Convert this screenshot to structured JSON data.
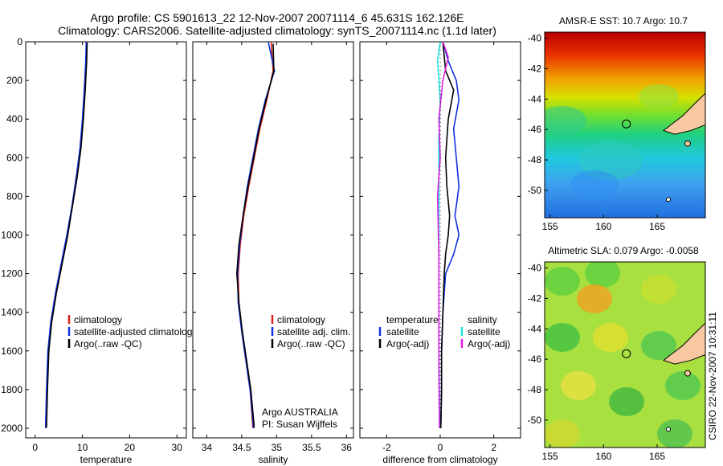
{
  "title": {
    "line1": "Argo profile: CS 5901613_22 12-Nov-2007 20071114_6 45.631S 162.126E",
    "line2": "Climatology: CARS2006. Satellite-adjusted climatology: synTS_20071114.nc (1.1d later)"
  },
  "side_label": "CSIRO 22-Nov-2007 10:31:11",
  "colors": {
    "climatology": "#e0201a",
    "satellite": "#1030e0",
    "argo": "#000000",
    "sat_sal": "#20e0e0",
    "argo_sal": "#e020e0"
  },
  "chart_data": [
    {
      "type": "line",
      "id": "temperature",
      "xlabel": "temperature",
      "xlim": [
        -2,
        32
      ],
      "ylim": [
        2050,
        0
      ],
      "xticks": [
        "0",
        "10",
        "20",
        "30"
      ],
      "xtick_values": [
        0,
        10,
        20,
        30
      ],
      "yticks": [
        "0",
        "200",
        "400",
        "600",
        "800",
        "1000",
        "1200",
        "1400",
        "1600",
        "1800",
        "2000"
      ],
      "ytick_values": [
        0,
        200,
        400,
        600,
        800,
        1000,
        1200,
        1400,
        1600,
        1800,
        2000
      ],
      "legend": [
        "climatology",
        "satellite-adjusted climatology",
        "Argo(..raw -QC)"
      ],
      "series": [
        {
          "name": "climatology",
          "color": "#e0201a",
          "x": [
            10.9,
            10.8,
            10.5,
            10.1,
            9.6,
            8.8,
            7.9,
            6.8,
            5.6,
            4.4,
            3.4,
            2.8,
            2.5,
            2.3
          ],
          "y": [
            0,
            100,
            250,
            400,
            550,
            700,
            850,
            1000,
            1150,
            1300,
            1450,
            1600,
            1800,
            2000
          ]
        },
        {
          "name": "satellite-adjusted climatology",
          "color": "#1030e0",
          "x": [
            10.8,
            10.7,
            10.4,
            10.0,
            9.5,
            8.7,
            7.8,
            6.7,
            5.5,
            4.3,
            3.3,
            2.7,
            2.4,
            2.2
          ],
          "y": [
            0,
            100,
            250,
            400,
            550,
            700,
            850,
            1000,
            1150,
            1300,
            1450,
            1600,
            1800,
            2000
          ]
        },
        {
          "name": "Argo(..raw -QC)",
          "color": "#000000",
          "x": [
            11.0,
            10.9,
            10.6,
            10.2,
            9.7,
            8.9,
            7.9,
            6.9,
            5.7,
            4.5,
            3.5,
            2.9,
            2.6,
            2.4
          ],
          "y": [
            5,
            100,
            250,
            400,
            550,
            700,
            850,
            1000,
            1150,
            1300,
            1450,
            1600,
            1800,
            1995
          ]
        }
      ]
    },
    {
      "type": "line",
      "id": "salinity",
      "xlabel": "salinity",
      "xlim": [
        33.8,
        36.1
      ],
      "ylim": [
        2050,
        0
      ],
      "xticks": [
        "34",
        "34.5",
        "35",
        "35.5",
        "36"
      ],
      "xtick_values": [
        34,
        34.5,
        35,
        35.5,
        36
      ],
      "legend": [
        "climatology",
        "satellite adj. clim.",
        "Argo(..raw -QC)"
      ],
      "annotation": [
        "Argo AUSTRALIA",
        "PI: Susan Wijffels"
      ],
      "series": [
        {
          "name": "climatology",
          "color": "#e0201a",
          "x": [
            34.92,
            34.95,
            34.86,
            34.76,
            34.68,
            34.6,
            34.53,
            34.48,
            34.45,
            34.46,
            34.5,
            34.56,
            34.62,
            34.66
          ],
          "y": [
            0,
            150,
            300,
            450,
            600,
            750,
            900,
            1050,
            1200,
            1350,
            1500,
            1650,
            1800,
            2000
          ]
        },
        {
          "name": "satellite adj. clim.",
          "color": "#1030e0",
          "x": [
            34.88,
            34.97,
            34.84,
            34.74,
            34.66,
            34.58,
            34.52,
            34.47,
            34.44,
            34.45,
            34.5,
            34.56,
            34.62,
            34.67
          ],
          "y": [
            0,
            150,
            300,
            450,
            600,
            750,
            900,
            1050,
            1200,
            1350,
            1500,
            1650,
            1800,
            2000
          ]
        },
        {
          "name": "Argo(..raw -QC)",
          "color": "#000000",
          "x": [
            34.95,
            34.96,
            34.85,
            34.75,
            34.67,
            34.59,
            34.52,
            34.46,
            34.43,
            34.46,
            34.51,
            34.57,
            34.63,
            34.68
          ],
          "y": [
            10,
            150,
            300,
            450,
            600,
            750,
            900,
            1050,
            1200,
            1350,
            1500,
            1650,
            1800,
            1995
          ]
        }
      ]
    },
    {
      "type": "line",
      "id": "difference",
      "xlabel": "difference from climatology",
      "xlim": [
        -3,
        3
      ],
      "ylim": [
        2050,
        0
      ],
      "xticks": [
        "-2",
        "0",
        "2"
      ],
      "xtick_values": [
        -2,
        0,
        2
      ],
      "legend_temp": [
        "temperature",
        "satellite",
        "Argo(-adj)"
      ],
      "legend_sal": [
        "salinity",
        "satellite",
        "Argo(-adj)"
      ],
      "series": [
        {
          "name": "temperature satellite",
          "color": "#1030e0",
          "x": [
            0.1,
            0.3,
            0.6,
            0.7,
            0.5,
            0.6,
            0.7,
            0.55,
            0.7,
            0.5,
            0.2,
            0.1,
            0.05,
            0.05,
            0.02
          ],
          "y": [
            0,
            100,
            200,
            300,
            450,
            600,
            750,
            900,
            1000,
            1100,
            1200,
            1400,
            1600,
            1800,
            2000
          ]
        },
        {
          "name": "temperature Argo(-adj)",
          "color": "#000000",
          "x": [
            0.1,
            0.2,
            0.5,
            0.3,
            0.2,
            0.25,
            0.35,
            0.3,
            0.2,
            0.15,
            0.1,
            0.05,
            0.05,
            0.02
          ],
          "y": [
            0,
            150,
            250,
            400,
            600,
            750,
            900,
            1000,
            1100,
            1200,
            1400,
            1600,
            1800,
            2000
          ]
        },
        {
          "name": "salinity satellite",
          "color": "#20e0e0",
          "x": [
            0.0,
            -0.1,
            0.0,
            -0.05,
            -0.05,
            -0.05,
            -0.05,
            -0.05,
            -0.03,
            -0.02
          ],
          "y": [
            0,
            100,
            300,
            500,
            800,
            1100,
            1400,
            1600,
            1800,
            2000
          ]
        },
        {
          "name": "salinity Argo(-adj)",
          "color": "#e020e0",
          "x": [
            0.1,
            0.3,
            0.1,
            -0.05,
            0.0,
            -0.05,
            -0.1,
            -0.05,
            -0.05,
            -0.05,
            -0.03
          ],
          "y": [
            0,
            80,
            200,
            400,
            600,
            700,
            800,
            1100,
            1400,
            1700,
            2000
          ]
        }
      ]
    },
    {
      "type": "heatmap",
      "id": "sst_map",
      "title": "AMSR-E SST: 10.7 Argo: 10.7",
      "xticks": [
        "155",
        "160",
        "165"
      ],
      "xtick_values": [
        155,
        160,
        165
      ],
      "yticks": [
        "-40",
        "-42",
        "-44",
        "-46",
        "-48",
        "-50"
      ],
      "ytick_values": [
        -40,
        -42,
        -44,
        -46,
        -48,
        -50
      ],
      "xlim": [
        154.5,
        169.5
      ],
      "ylim": [
        -51.8,
        -39.6
      ],
      "argo_position": [
        162.126,
        -45.631
      ]
    },
    {
      "type": "heatmap",
      "id": "sla_map",
      "title": "Altimetric SLA: 0.079 Argo: -0.0058",
      "xticks": [
        "155",
        "160",
        "165"
      ],
      "xtick_values": [
        155,
        160,
        165
      ],
      "yticks": [
        "-40",
        "-42",
        "-44",
        "-46",
        "-48",
        "-50"
      ],
      "ytick_values": [
        -40,
        -42,
        -44,
        -46,
        -48,
        -50
      ],
      "xlim": [
        154.5,
        169.5
      ],
      "ylim": [
        -51.8,
        -39.6
      ],
      "argo_position": [
        162.126,
        -45.631
      ]
    }
  ]
}
